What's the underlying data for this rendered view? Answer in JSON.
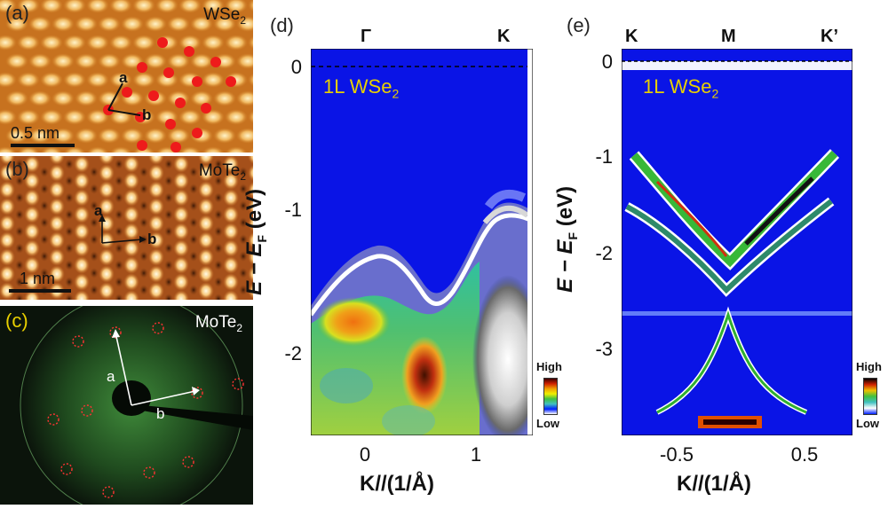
{
  "panels": {
    "a": {
      "label": "(a)",
      "material": "WSe",
      "material_sub": "2",
      "vec_a": "a",
      "vec_b": "b",
      "scale": "0.5 nm"
    },
    "b": {
      "label": "(b)",
      "material": "MoTe",
      "material_sub": "2",
      "vec_a": "a",
      "vec_b": "b",
      "scale": "1 nm"
    },
    "c": {
      "label": "(c)",
      "material": "MoTe",
      "material_sub": "2",
      "vec_a": "a",
      "vec_b": "b"
    },
    "d": {
      "label": "(d)",
      "inset": "1L WSe",
      "inset_sub": "2",
      "hs_points": [
        "Γ",
        "K"
      ],
      "yticks": [
        "0",
        "-1",
        "-2"
      ],
      "xticks": [
        "0",
        "1"
      ],
      "ylabel_main": "E − E",
      "ylabel_sub": "F",
      "ylabel_unit": " (eV)",
      "xlabel": "K//(1/Å)",
      "legend_high": "High",
      "legend_low": "Low"
    },
    "e": {
      "label": "(e)",
      "inset": "1L WSe",
      "inset_sub": "2",
      "hs_points": [
        "K",
        "M",
        "K’"
      ],
      "yticks": [
        "0",
        "-1",
        "-2",
        "-3"
      ],
      "xticks": [
        "-0.5",
        "0.5"
      ],
      "ylabel_main": "E − E",
      "ylabel_sub": "F",
      "ylabel_unit": " (eV)",
      "xlabel": "K//(1/Å)",
      "legend_high": "High",
      "legend_low": "Low"
    }
  },
  "colors": {
    "band_bg": "#0a14e6",
    "stm_bg": "#c8701e",
    "leed_bg": "#0b140b",
    "inset_text": "#e8d000"
  }
}
